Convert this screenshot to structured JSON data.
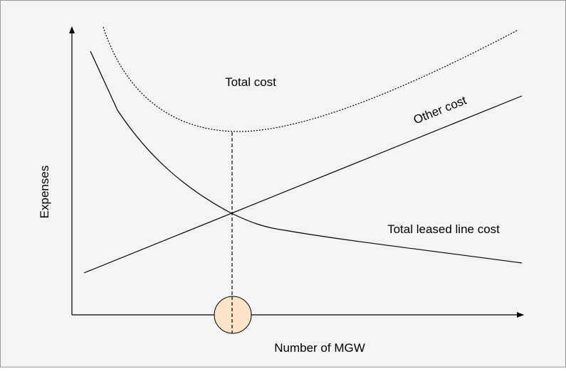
{
  "diagram": {
    "y_axis_label": "Expenses",
    "x_axis_label": "Number of MGW",
    "curves": [
      {
        "label": "Total cost"
      },
      {
        "label": "Other cost"
      },
      {
        "label": "Total leased line cost"
      }
    ]
  }
}
